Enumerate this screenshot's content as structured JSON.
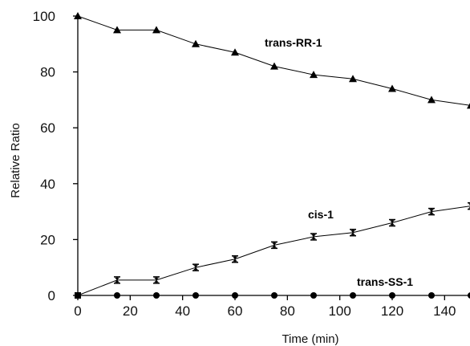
{
  "chart_data": {
    "type": "line",
    "title": "",
    "xlabel": "Time (min)",
    "ylabel": "Relative Ratio",
    "xlim": [
      0,
      150
    ],
    "ylim": [
      0,
      100
    ],
    "x_ticks": [
      0,
      20,
      40,
      60,
      80,
      100,
      120,
      140
    ],
    "y_ticks": [
      0,
      20,
      40,
      60,
      80,
      100
    ],
    "grid": false,
    "series": [
      {
        "name": "trans-RR-1",
        "marker": "triangle",
        "x": [
          0,
          15,
          30,
          45,
          60,
          75,
          90,
          105,
          120,
          135,
          150
        ],
        "y": [
          100,
          95,
          95,
          90,
          87,
          82,
          79,
          77.5,
          74,
          70,
          68
        ]
      },
      {
        "name": "cis-1",
        "marker": "error-bar",
        "x": [
          0,
          15,
          30,
          45,
          60,
          75,
          90,
          105,
          120,
          135,
          150
        ],
        "y": [
          0,
          5.5,
          5.5,
          10,
          13,
          18,
          21,
          22.5,
          26,
          30,
          32
        ]
      },
      {
        "name": "trans-SS-1",
        "marker": "circle",
        "x": [
          0,
          15,
          30,
          45,
          60,
          75,
          90,
          105,
          120,
          135,
          150
        ],
        "y": [
          0,
          0,
          0,
          0,
          0,
          0,
          0,
          0,
          0,
          0,
          0
        ]
      }
    ]
  }
}
